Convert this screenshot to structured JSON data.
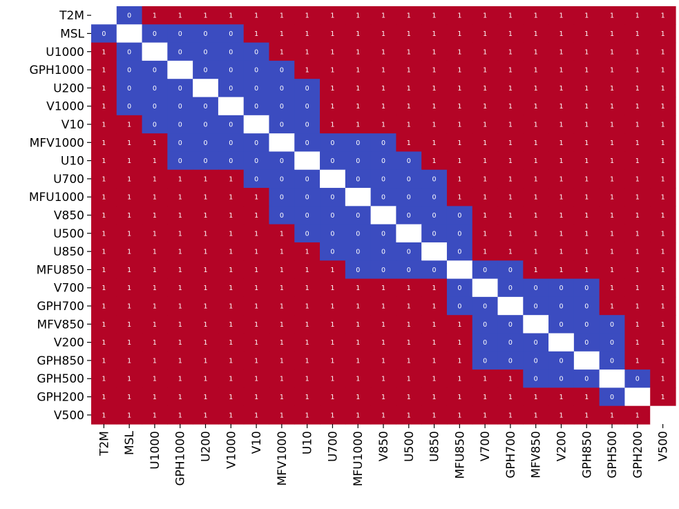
{
  "chart_data": {
    "type": "heatmap",
    "title": "",
    "xlabel": "",
    "ylabel": "",
    "categories": [
      "T2M",
      "MSL",
      "U1000",
      "GPH1000",
      "U200",
      "V1000",
      "V10",
      "MFV1000",
      "U10",
      "U700",
      "MFU1000",
      "V850",
      "U500",
      "U850",
      "MFU850",
      "V700",
      "GPH700",
      "MFV850",
      "V200",
      "GPH850",
      "GPH500",
      "GPH200",
      "V500"
    ],
    "x_labels": [
      "T2M",
      "MSL",
      "U1000",
      "GPH1000",
      "U200",
      "V1000",
      "V10",
      "MFV1000",
      "U10",
      "U700",
      "MFU1000",
      "V850",
      "U500",
      "U850",
      "MFU850",
      "V700",
      "GPH700",
      "MFV850",
      "V200",
      "GPH850",
      "GPH500",
      "GPH200",
      "V500"
    ],
    "y_labels": [
      "T2M",
      "MSL",
      "U1000",
      "GPH1000",
      "U200",
      "V1000",
      "V10",
      "MFV1000",
      "U10",
      "U700",
      "MFU1000",
      "V850",
      "U500",
      "U850",
      "MFU850",
      "V700",
      "GPH700",
      "MFV850",
      "V200",
      "GPH850",
      "GPH500",
      "GPH200",
      "V500"
    ],
    "diagonal": "blank",
    "colorbar": false,
    "annotated": true,
    "colormap": {
      "0": "#3b4cc0",
      "1": "#b40426",
      "diagonal": "#ffffff"
    },
    "matrix": [
      [
        null,
        0,
        1,
        1,
        1,
        1,
        1,
        1,
        1,
        1,
        1,
        1,
        1,
        1,
        1,
        1,
        1,
        1,
        1,
        1,
        1,
        1,
        1
      ],
      [
        0,
        null,
        0,
        0,
        0,
        0,
        1,
        1,
        1,
        1,
        1,
        1,
        1,
        1,
        1,
        1,
        1,
        1,
        1,
        1,
        1,
        1,
        1
      ],
      [
        1,
        0,
        null,
        0,
        0,
        0,
        0,
        1,
        1,
        1,
        1,
        1,
        1,
        1,
        1,
        1,
        1,
        1,
        1,
        1,
        1,
        1,
        1
      ],
      [
        1,
        0,
        0,
        null,
        0,
        0,
        0,
        0,
        1,
        1,
        1,
        1,
        1,
        1,
        1,
        1,
        1,
        1,
        1,
        1,
        1,
        1,
        1
      ],
      [
        1,
        0,
        0,
        0,
        null,
        0,
        0,
        0,
        0,
        1,
        1,
        1,
        1,
        1,
        1,
        1,
        1,
        1,
        1,
        1,
        1,
        1,
        1
      ],
      [
        1,
        0,
        0,
        0,
        0,
        null,
        0,
        0,
        0,
        1,
        1,
        1,
        1,
        1,
        1,
        1,
        1,
        1,
        1,
        1,
        1,
        1,
        1
      ],
      [
        1,
        1,
        0,
        0,
        0,
        0,
        null,
        0,
        0,
        1,
        1,
        1,
        1,
        1,
        1,
        1,
        1,
        1,
        1,
        1,
        1,
        1,
        1
      ],
      [
        1,
        1,
        1,
        0,
        0,
        0,
        0,
        null,
        0,
        0,
        0,
        0,
        1,
        1,
        1,
        1,
        1,
        1,
        1,
        1,
        1,
        1,
        1
      ],
      [
        1,
        1,
        1,
        0,
        0,
        0,
        0,
        0,
        null,
        0,
        0,
        0,
        0,
        1,
        1,
        1,
        1,
        1,
        1,
        1,
        1,
        1,
        1
      ],
      [
        1,
        1,
        1,
        1,
        1,
        1,
        0,
        0,
        0,
        null,
        0,
        0,
        0,
        0,
        1,
        1,
        1,
        1,
        1,
        1,
        1,
        1,
        1
      ],
      [
        1,
        1,
        1,
        1,
        1,
        1,
        1,
        0,
        0,
        0,
        null,
        0,
        0,
        0,
        1,
        1,
        1,
        1,
        1,
        1,
        1,
        1,
        1
      ],
      [
        1,
        1,
        1,
        1,
        1,
        1,
        1,
        0,
        0,
        0,
        0,
        null,
        0,
        0,
        0,
        1,
        1,
        1,
        1,
        1,
        1,
        1,
        1
      ],
      [
        1,
        1,
        1,
        1,
        1,
        1,
        1,
        1,
        0,
        0,
        0,
        0,
        null,
        0,
        0,
        1,
        1,
        1,
        1,
        1,
        1,
        1,
        1
      ],
      [
        1,
        1,
        1,
        1,
        1,
        1,
        1,
        1,
        1,
        0,
        0,
        0,
        0,
        null,
        0,
        1,
        1,
        1,
        1,
        1,
        1,
        1,
        1
      ],
      [
        1,
        1,
        1,
        1,
        1,
        1,
        1,
        1,
        1,
        1,
        0,
        0,
        0,
        0,
        null,
        0,
        0,
        1,
        1,
        1,
        1,
        1,
        1
      ],
      [
        1,
        1,
        1,
        1,
        1,
        1,
        1,
        1,
        1,
        1,
        1,
        1,
        1,
        1,
        0,
        null,
        0,
        0,
        0,
        0,
        1,
        1,
        1
      ],
      [
        1,
        1,
        1,
        1,
        1,
        1,
        1,
        1,
        1,
        1,
        1,
        1,
        1,
        1,
        0,
        0,
        null,
        0,
        0,
        0,
        1,
        1,
        1
      ],
      [
        1,
        1,
        1,
        1,
        1,
        1,
        1,
        1,
        1,
        1,
        1,
        1,
        1,
        1,
        1,
        0,
        0,
        null,
        0,
        0,
        0,
        1,
        1
      ],
      [
        1,
        1,
        1,
        1,
        1,
        1,
        1,
        1,
        1,
        1,
        1,
        1,
        1,
        1,
        1,
        0,
        0,
        0,
        null,
        0,
        0,
        1,
        1
      ],
      [
        1,
        1,
        1,
        1,
        1,
        1,
        1,
        1,
        1,
        1,
        1,
        1,
        1,
        1,
        1,
        0,
        0,
        0,
        0,
        null,
        0,
        1,
        1
      ],
      [
        1,
        1,
        1,
        1,
        1,
        1,
        1,
        1,
        1,
        1,
        1,
        1,
        1,
        1,
        1,
        1,
        1,
        0,
        0,
        0,
        null,
        0,
        1
      ],
      [
        1,
        1,
        1,
        1,
        1,
        1,
        1,
        1,
        1,
        1,
        1,
        1,
        1,
        1,
        1,
        1,
        1,
        1,
        1,
        1,
        0,
        null,
        1
      ],
      [
        1,
        1,
        1,
        1,
        1,
        1,
        1,
        1,
        1,
        1,
        1,
        1,
        1,
        1,
        1,
        1,
        1,
        1,
        1,
        1,
        1,
        1,
        null
      ]
    ]
  }
}
